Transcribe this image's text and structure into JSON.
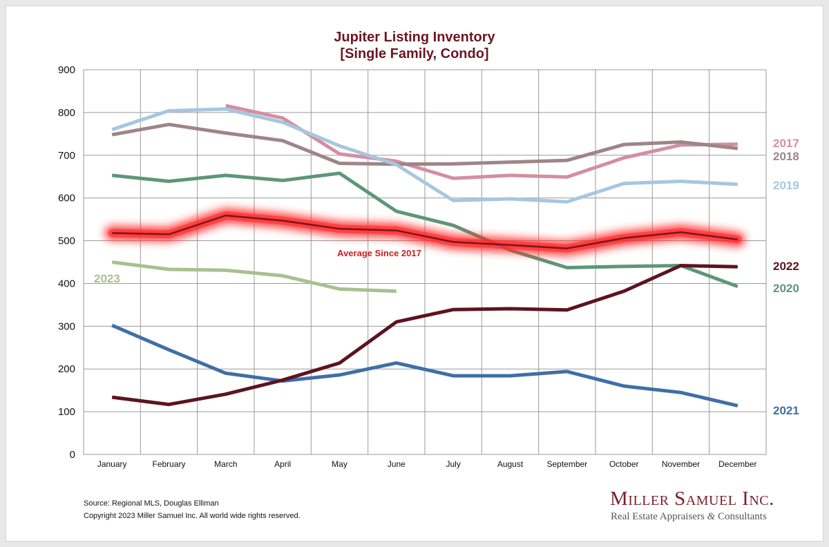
{
  "chart_data": {
    "type": "line",
    "title": "Jupiter Listing Inventory",
    "subtitle": "[Single Family, Condo]",
    "categories": [
      "January",
      "February",
      "March",
      "April",
      "May",
      "June",
      "July",
      "August",
      "September",
      "October",
      "November",
      "December"
    ],
    "ylim": [
      0,
      900
    ],
    "yticks": [
      0,
      100,
      200,
      300,
      400,
      500,
      600,
      700,
      800,
      900
    ],
    "grid": true,
    "series": [
      {
        "name": "2017",
        "color": "#d58ea1",
        "values": [
          null,
          null,
          816,
          787,
          703,
          686,
          646,
          653,
          649,
          694,
          724,
          726
        ]
      },
      {
        "name": "2018",
        "color": "#9e8586",
        "values": [
          748,
          772,
          752,
          734,
          681,
          679,
          680,
          684,
          688,
          725,
          731,
          716
        ]
      },
      {
        "name": "2019",
        "color": "#a7c6e0",
        "values": [
          760,
          804,
          808,
          777,
          722,
          678,
          594,
          598,
          591,
          634,
          639,
          632
        ]
      },
      {
        "name": "2020",
        "color": "#5e9678",
        "values": [
          653,
          639,
          653,
          641,
          658,
          569,
          536,
          478,
          437,
          440,
          442,
          393
        ]
      },
      {
        "name": "2021",
        "color": "#3f6fa5",
        "values": [
          302,
          245,
          190,
          172,
          186,
          214,
          184,
          184,
          194,
          160,
          145,
          114
        ]
      },
      {
        "name": "2022",
        "color": "#5c1420",
        "values": [
          134,
          117,
          141,
          174,
          214,
          310,
          339,
          341,
          338,
          382,
          442,
          439
        ]
      },
      {
        "name": "2023",
        "color": "#a9c08f",
        "values": [
          450,
          433,
          431,
          418,
          387,
          382,
          null,
          null,
          null,
          null,
          null,
          null
        ]
      },
      {
        "name": "Average  Since 2017",
        "color": "#7a1420",
        "glow": "#ff2a2a",
        "values": [
          518,
          515,
          559,
          547,
          528,
          524,
          497,
          490,
          482,
          506,
          520,
          503
        ]
      }
    ],
    "annotations": [
      "Average  Since 2017"
    ]
  },
  "footer": {
    "source": "Source: Regional MLS, Douglas Elliman",
    "copyright": "Copyright 2023 Miller Samuel Inc.  All world wide rights reserved."
  },
  "logo": {
    "name": "Miller Samuel Inc.",
    "tagline_start": "Real Estate Appraisers ",
    "tagline_amp": "&",
    "tagline_end": " Consultants"
  }
}
